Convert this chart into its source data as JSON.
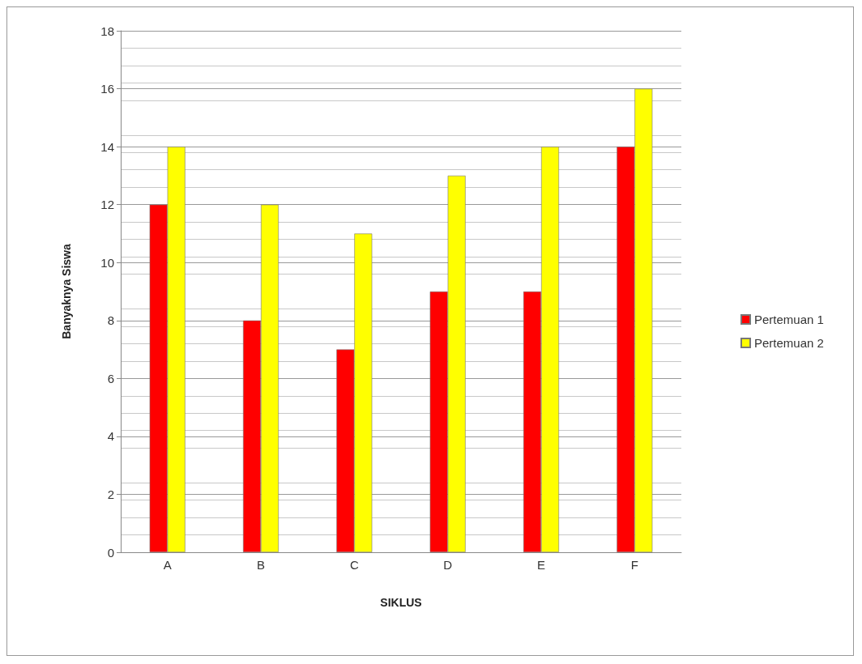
{
  "chart_data": {
    "type": "bar",
    "xlabel": "SIKLUS",
    "ylabel": "Banyaknya Siswa",
    "categories": [
      "A",
      "B",
      "C",
      "D",
      "E",
      "F"
    ],
    "series": [
      {
        "name": "Pertemuan 1",
        "color": "#ff0000",
        "values": [
          12,
          8,
          7,
          9,
          9,
          14
        ]
      },
      {
        "name": "Pertemuan 2",
        "color": "#ffff00",
        "values": [
          14,
          12,
          11,
          13,
          14,
          16
        ]
      }
    ],
    "ylim": [
      0,
      18
    ],
    "yticks": [
      0,
      2,
      4,
      6,
      8,
      10,
      12,
      14,
      16,
      18
    ],
    "grid": "y",
    "legend": "right"
  }
}
